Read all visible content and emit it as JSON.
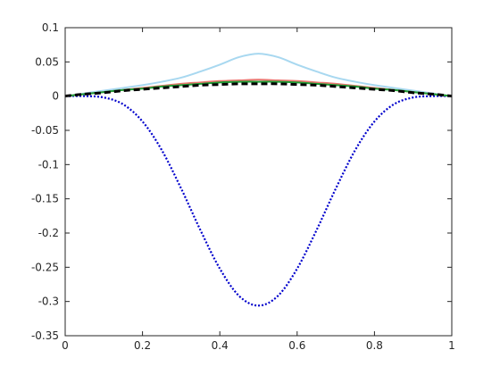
{
  "chart_data": {
    "type": "line",
    "title": "",
    "xlabel": "",
    "ylabel": "",
    "xlim": [
      0,
      1
    ],
    "ylim": [
      -0.35,
      0.1
    ],
    "grid": false,
    "legend": "none",
    "x_ticks": [
      0,
      0.2,
      0.4,
      0.6,
      0.8,
      1
    ],
    "x_tick_labels": [
      "0",
      "0.2",
      "0.4",
      "0.6",
      "0.8",
      "1"
    ],
    "y_ticks": [
      0.1,
      0.05,
      0,
      -0.05,
      -0.1,
      -0.15,
      -0.2,
      -0.25,
      -0.3,
      -0.35
    ],
    "y_tick_labels": [
      "0.1",
      "0.05",
      "0",
      "-0.05",
      "-0.1",
      "-0.15",
      "-0.2",
      "-0.25",
      "-0.3",
      "-0.35"
    ],
    "series": [
      {
        "color": "#0000cc",
        "style": "dotted",
        "x": [
          0,
          0.05,
          0.1,
          0.15,
          0.2,
          0.25,
          0.3,
          0.35,
          0.4,
          0.45,
          0.5,
          0.55,
          0.6,
          0.65,
          0.7,
          0.75,
          0.8,
          0.85,
          0.9,
          0.95,
          1
        ],
        "y": [
          0,
          0,
          -0.002,
          -0.012,
          -0.037,
          -0.079,
          -0.135,
          -0.196,
          -0.252,
          -0.292,
          -0.306,
          -0.292,
          -0.252,
          -0.196,
          -0.135,
          -0.079,
          -0.037,
          -0.012,
          -0.002,
          0,
          0
        ]
      },
      {
        "color": "#a8d8f0",
        "style": "solid",
        "x": [
          0,
          0.05,
          0.1,
          0.15,
          0.2,
          0.25,
          0.3,
          0.35,
          0.4,
          0.45,
          0.5,
          0.55,
          0.6,
          0.65,
          0.7,
          0.75,
          0.8,
          0.85,
          0.9,
          0.95,
          1
        ],
        "y": [
          0,
          0.004,
          0.008,
          0.012,
          0.016,
          0.021,
          0.027,
          0.036,
          0.046,
          0.057,
          0.062,
          0.057,
          0.046,
          0.036,
          0.027,
          0.021,
          0.016,
          0.012,
          0.008,
          0.004,
          0
        ]
      },
      {
        "color": "#e8766f",
        "style": "solid",
        "x": [
          0,
          0.05,
          0.1,
          0.15,
          0.2,
          0.25,
          0.3,
          0.35,
          0.4,
          0.45,
          0.5,
          0.55,
          0.6,
          0.65,
          0.7,
          0.75,
          0.8,
          0.85,
          0.9,
          0.95,
          1
        ],
        "y": [
          0,
          0.003,
          0.006,
          0.009,
          0.012,
          0.015,
          0.018,
          0.02,
          0.022,
          0.023,
          0.024,
          0.023,
          0.022,
          0.02,
          0.018,
          0.015,
          0.012,
          0.009,
          0.006,
          0.003,
          0
        ]
      },
      {
        "color": "#1f9e35",
        "style": "solid",
        "x": [
          0,
          0.05,
          0.1,
          0.15,
          0.2,
          0.25,
          0.3,
          0.35,
          0.4,
          0.45,
          0.5,
          0.55,
          0.6,
          0.65,
          0.7,
          0.75,
          0.8,
          0.85,
          0.9,
          0.95,
          1
        ],
        "y": [
          0,
          0.003,
          0.006,
          0.009,
          0.011,
          0.014,
          0.016,
          0.018,
          0.02,
          0.021,
          0.021,
          0.021,
          0.02,
          0.018,
          0.016,
          0.014,
          0.011,
          0.009,
          0.006,
          0.003,
          0
        ]
      },
      {
        "color": "#000000",
        "style": "dashed",
        "x": [
          0,
          0.05,
          0.1,
          0.15,
          0.2,
          0.25,
          0.3,
          0.35,
          0.4,
          0.45,
          0.5,
          0.55,
          0.6,
          0.65,
          0.7,
          0.75,
          0.8,
          0.85,
          0.9,
          0.95,
          1
        ],
        "y": [
          0,
          0.003,
          0.005,
          0.008,
          0.01,
          0.012,
          0.014,
          0.016,
          0.017,
          0.018,
          0.018,
          0.018,
          0.017,
          0.016,
          0.014,
          0.012,
          0.01,
          0.008,
          0.005,
          0.003,
          0
        ]
      }
    ]
  }
}
